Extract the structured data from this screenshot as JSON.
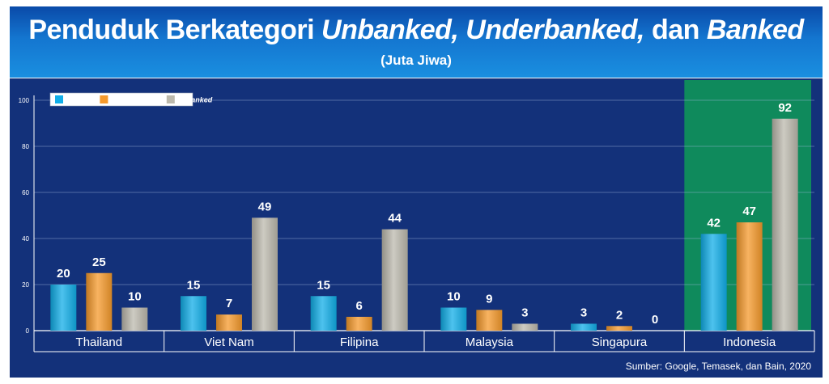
{
  "header": {
    "title_prefix": "Penduduk Berkategori",
    "title_unbanked": "Unbanked,",
    "title_underbanked": "Underbanked,",
    "title_dan": "dan",
    "title_banked": "Banked",
    "subtitle": "(Juta Jiwa)"
  },
  "footer": {
    "source": "Sumber: Google, Temasek, dan Bain, 2020"
  },
  "colors": {
    "banked": "#11aee8",
    "underbanked": "#f59a2c",
    "unbanked": "#bcb9ad",
    "plot_bg": "#13317a",
    "highlight": "#0f8a5c"
  },
  "chart_data": {
    "type": "bar",
    "title": "Penduduk Berkategori Unbanked, Underbanked, dan Banked",
    "subtitle": "(Juta Jiwa)",
    "categories": [
      "Thailand",
      "Viet Nam",
      "Filipina",
      "Malaysia",
      "Singapura",
      "Indonesia"
    ],
    "series": [
      {
        "name": "Banked",
        "values": [
          20,
          15,
          15,
          10,
          3,
          42
        ]
      },
      {
        "name": "Underbanked",
        "values": [
          25,
          7,
          6,
          9,
          2,
          47
        ]
      },
      {
        "name": "Unbanked",
        "values": [
          10,
          49,
          44,
          3,
          0,
          92
        ]
      }
    ],
    "ylim": [
      0,
      100
    ],
    "yticks": [
      0,
      20,
      40,
      60,
      80,
      100
    ],
    "highlight_category": "Indonesia",
    "grid": true,
    "legend": "top-left"
  }
}
